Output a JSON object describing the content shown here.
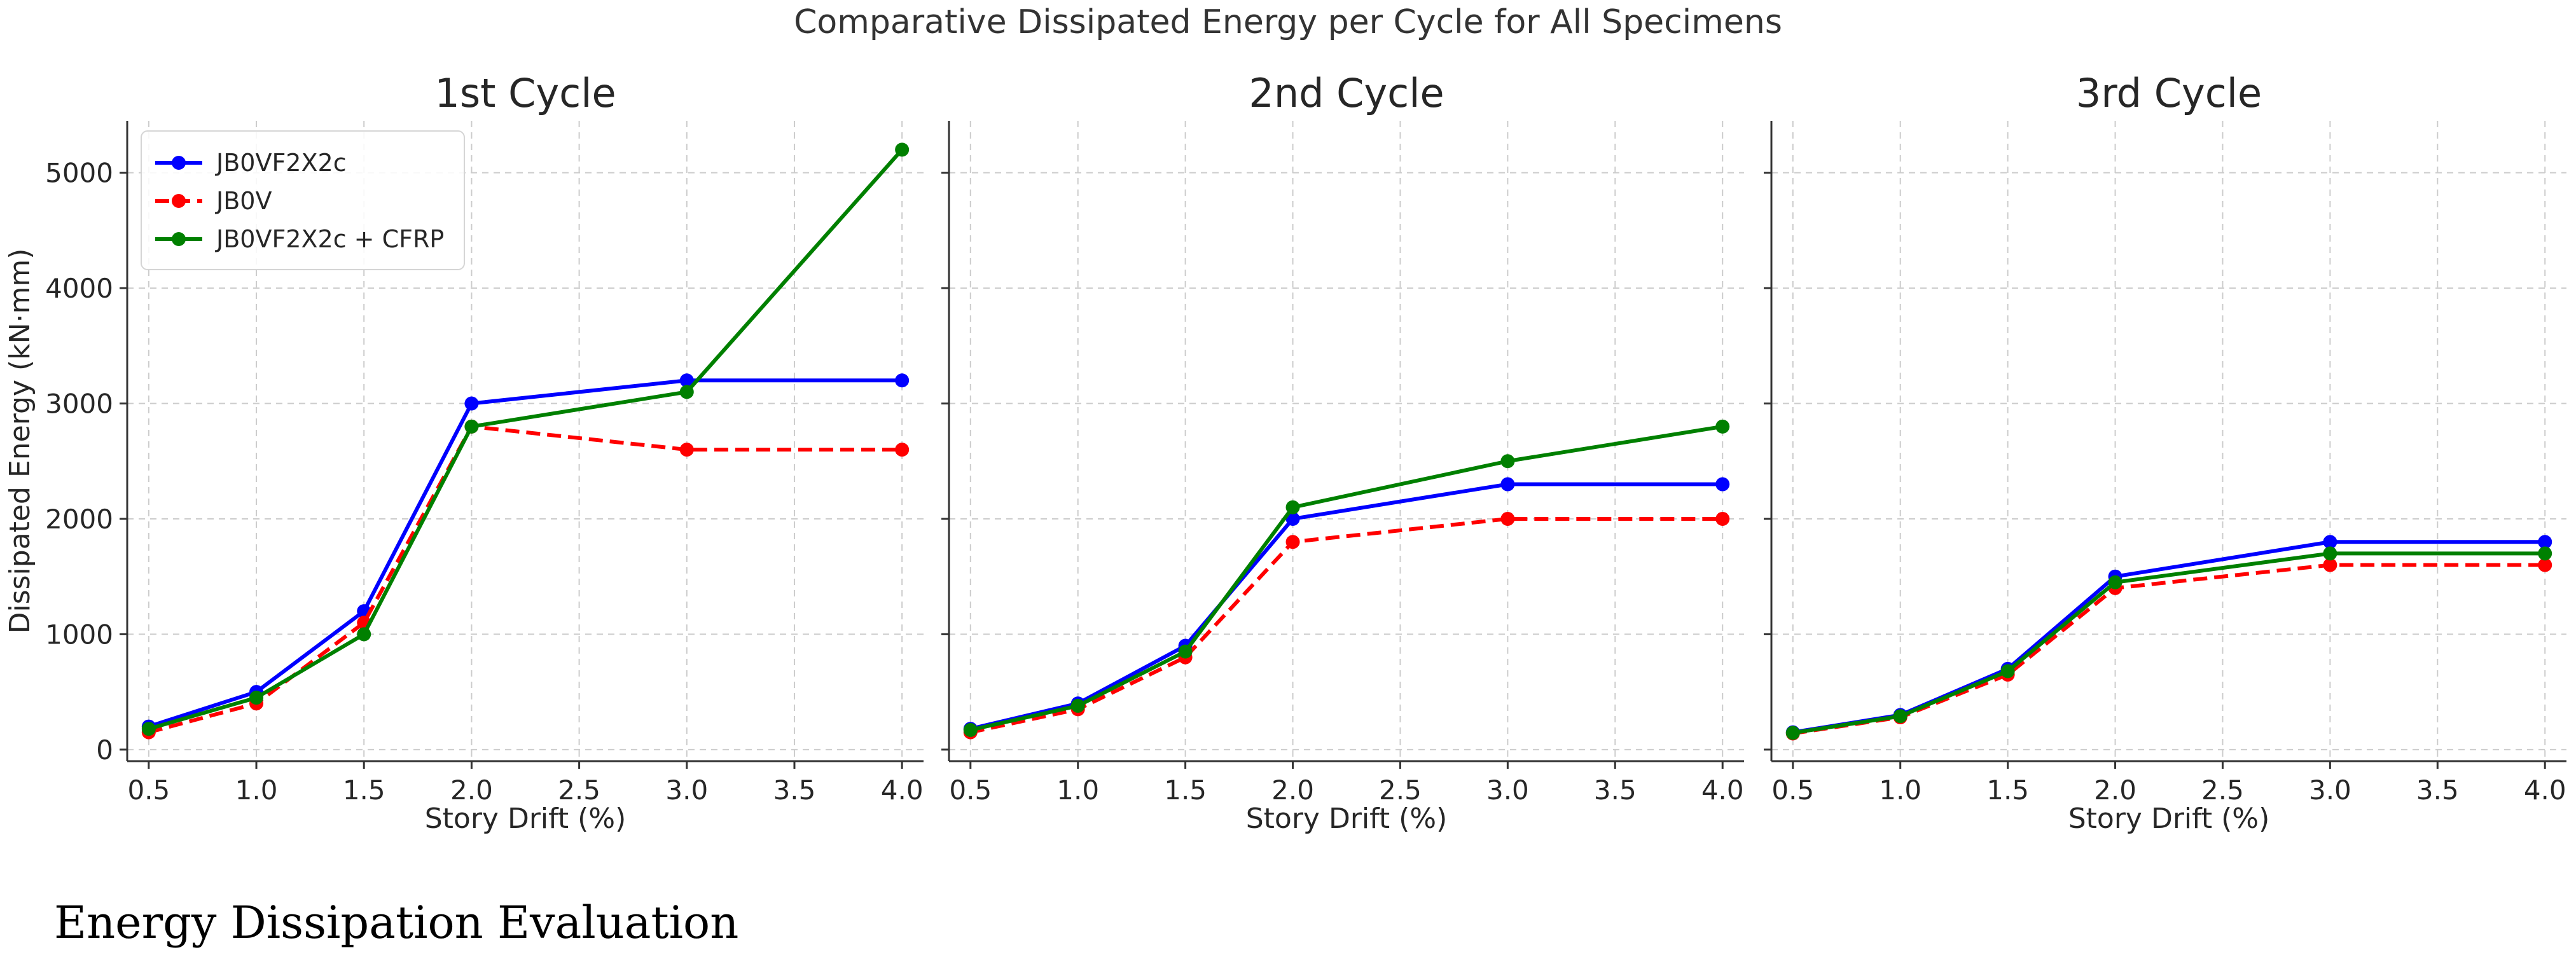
{
  "figure": {
    "title": "Comparative Dissipated Energy per Cycle for All Specimens",
    "caption": "Energy Dissipation Evaluation"
  },
  "colors": {
    "JB0VF2X2c": "#0000ff",
    "JB0V": "#ff0000",
    "JB0VF2X2c + CFRP": "#008000",
    "grid": "#cccccc",
    "axis": "#333333"
  },
  "chart_data": [
    {
      "type": "line",
      "title": "1st Cycle",
      "xlabel": "Story Drift (%)",
      "ylabel": "Dissipated Energy (kN·mm)",
      "xlim": [
        0.4,
        4.1
      ],
      "ylim": [
        -100,
        5450
      ],
      "xticks": [
        "0.5",
        "1.0",
        "1.5",
        "2.0",
        "2.5",
        "3.0",
        "3.5",
        "4.0"
      ],
      "yticks": [
        "0",
        "1000",
        "2000",
        "3000",
        "4000",
        "5000"
      ],
      "grid": true,
      "legend": {
        "location": "upper-left",
        "entries": [
          "JB0VF2X2c",
          "JB0V",
          "JB0VF2X2c + CFRP"
        ]
      },
      "x": [
        0.5,
        1.0,
        1.5,
        2.0,
        3.0,
        4.0
      ],
      "series": [
        {
          "name": "JB0VF2X2c",
          "style": "solid",
          "values": [
            200,
            500,
            1200,
            3000,
            3200,
            3200
          ]
        },
        {
          "name": "JB0V",
          "style": "dashed",
          "values": [
            150,
            400,
            1100,
            2800,
            2600,
            2600
          ]
        },
        {
          "name": "JB0VF2X2c + CFRP",
          "style": "solid",
          "values": [
            180,
            450,
            1000,
            2800,
            3100,
            5200
          ]
        }
      ]
    },
    {
      "type": "line",
      "title": "2nd Cycle",
      "xlabel": "Story Drift (%)",
      "ylabel": "",
      "xlim": [
        0.4,
        4.1
      ],
      "ylim": [
        -100,
        5450
      ],
      "xticks": [
        "0.5",
        "1.0",
        "1.5",
        "2.0",
        "2.5",
        "3.0",
        "3.5",
        "4.0"
      ],
      "yticks": [],
      "grid": true,
      "x": [
        0.5,
        1.0,
        1.5,
        2.0,
        3.0,
        4.0
      ],
      "series": [
        {
          "name": "JB0VF2X2c",
          "style": "solid",
          "values": [
            180,
            400,
            900,
            2000,
            2300,
            2300
          ]
        },
        {
          "name": "JB0V",
          "style": "dashed",
          "values": [
            150,
            350,
            800,
            1800,
            2000,
            2000
          ]
        },
        {
          "name": "JB0VF2X2c + CFRP",
          "style": "solid",
          "values": [
            170,
            380,
            850,
            2100,
            2500,
            2800
          ]
        }
      ]
    },
    {
      "type": "line",
      "title": "3rd Cycle",
      "xlabel": "Story Drift (%)",
      "ylabel": "",
      "xlim": [
        0.4,
        4.1
      ],
      "ylim": [
        -100,
        5450
      ],
      "xticks": [
        "0.5",
        "1.0",
        "1.5",
        "2.0",
        "2.5",
        "3.0",
        "3.5",
        "4.0"
      ],
      "yticks": [],
      "grid": true,
      "x": [
        0.5,
        1.0,
        1.5,
        2.0,
        3.0,
        4.0
      ],
      "series": [
        {
          "name": "JB0VF2X2c",
          "style": "solid",
          "values": [
            150,
            300,
            700,
            1500,
            1800,
            1800
          ]
        },
        {
          "name": "JB0V",
          "style": "dashed",
          "values": [
            140,
            280,
            650,
            1400,
            1600,
            1600
          ]
        },
        {
          "name": "JB0VF2X2c + CFRP",
          "style": "solid",
          "values": [
            145,
            290,
            680,
            1450,
            1700,
            1700
          ]
        }
      ]
    }
  ]
}
